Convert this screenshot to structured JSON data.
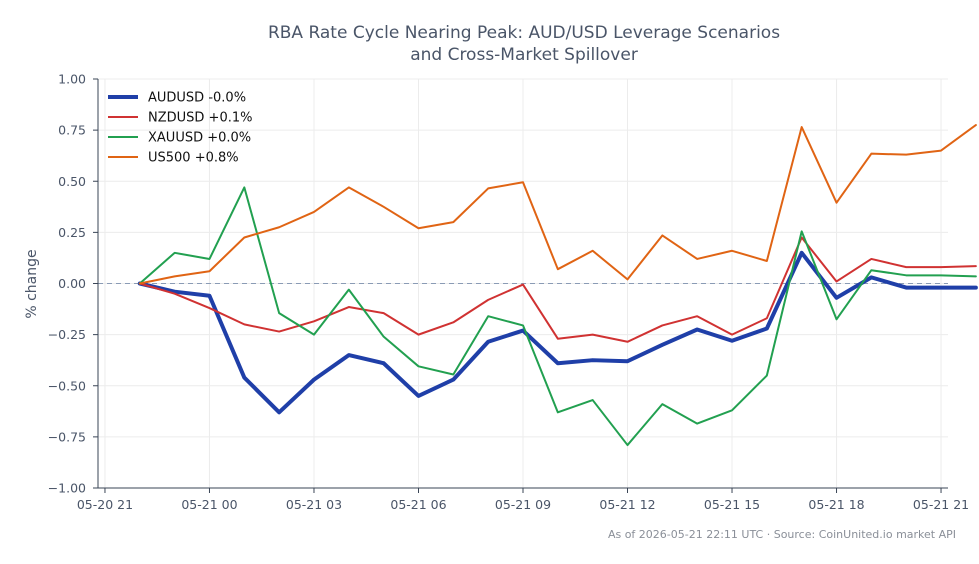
{
  "chart_data": {
    "type": "line",
    "title": [
      "RBA Rate Cycle Nearing Peak: AUD/USD Leverage Scenarios",
      "and Cross-Market Spillover"
    ],
    "ylabel": "% change",
    "xlabel": "",
    "ylim": [
      -1.0,
      1.0
    ],
    "yticks": [
      "1.00",
      "0.75",
      "0.50",
      "0.25",
      "0.00",
      "−0.25",
      "−0.50",
      "−0.75",
      "−1.00"
    ],
    "ytick_values": [
      1.0,
      0.75,
      0.5,
      0.25,
      0.0,
      -0.25,
      -0.5,
      -0.75,
      -1.0
    ],
    "x_start": "2026-05-20T22:00",
    "x_step_hours": 1,
    "xlim_hours": [
      -1.2,
      23.2
    ],
    "xticks": [
      "05-20 21",
      "05-21 00",
      "05-21 03",
      "05-21 06",
      "05-21 09",
      "05-21 12",
      "05-21 15",
      "05-21 18",
      "05-21 21"
    ],
    "xtick_hours": [
      -1,
      2,
      5,
      8,
      11,
      14,
      17,
      20,
      23
    ],
    "grid": true,
    "legend_position": "top-left",
    "baseline": 0,
    "series": [
      {
        "name": "AUDUSD -0.0%",
        "color": "#1f3fa8",
        "width": 4,
        "values": [
          0.0,
          -0.04,
          -0.06,
          -0.46,
          -0.63,
          -0.47,
          -0.35,
          -0.39,
          -0.55,
          -0.47,
          -0.285,
          -0.23,
          -0.39,
          -0.375,
          -0.38,
          -0.3,
          -0.225,
          -0.28,
          -0.22,
          0.15,
          -0.07,
          0.03,
          -0.02,
          -0.02,
          -0.02
        ]
      },
      {
        "name": "NZDUSD +0.1%",
        "color": "#d03232",
        "width": 2,
        "values": [
          0.0,
          -0.05,
          -0.12,
          -0.2,
          -0.235,
          -0.185,
          -0.115,
          -0.145,
          -0.25,
          -0.19,
          -0.08,
          -0.005,
          -0.27,
          -0.25,
          -0.285,
          -0.205,
          -0.16,
          -0.25,
          -0.17,
          0.225,
          0.01,
          0.12,
          0.08,
          0.08,
          0.085
        ]
      },
      {
        "name": "XAUUSD +0.0%",
        "color": "#22a050",
        "width": 2,
        "values": [
          0.0,
          0.15,
          0.12,
          0.47,
          -0.145,
          -0.25,
          -0.03,
          -0.26,
          -0.405,
          -0.445,
          -0.16,
          -0.205,
          -0.63,
          -0.57,
          -0.79,
          -0.59,
          -0.685,
          -0.62,
          -0.45,
          0.255,
          -0.175,
          0.065,
          0.04,
          0.04,
          0.035
        ]
      },
      {
        "name": "US500 +0.8%",
        "color": "#e06414",
        "width": 2,
        "values": [
          0.0,
          0.035,
          0.06,
          0.225,
          0.275,
          0.35,
          0.47,
          0.375,
          0.27,
          0.3,
          0.465,
          0.495,
          0.07,
          0.16,
          0.02,
          0.235,
          0.12,
          0.16,
          0.11,
          0.765,
          0.395,
          0.635,
          0.63,
          0.65,
          0.775
        ]
      }
    ]
  },
  "footer": "As of 2026-05-21 22:11 UTC · Source: CoinUnited.io market API"
}
